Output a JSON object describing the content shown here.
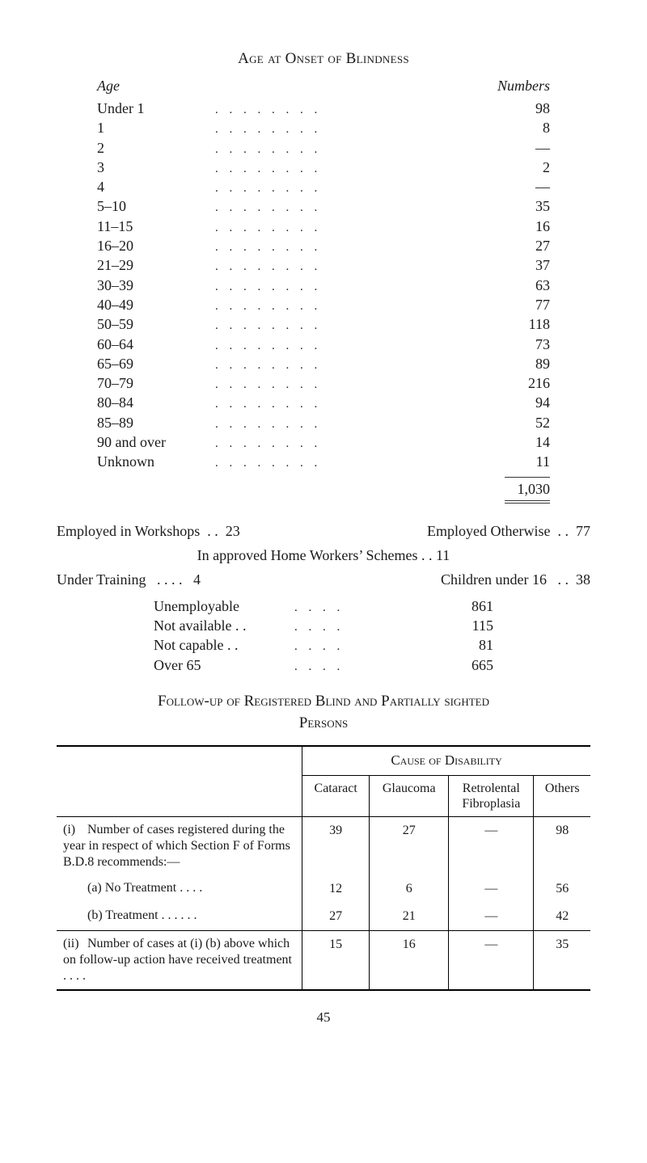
{
  "title": "Age at Onset of Blindness",
  "age_header": {
    "left": "Age",
    "right": "Numbers"
  },
  "age_rows": [
    {
      "label": "Under 1",
      "num": "98"
    },
    {
      "label": "1",
      "num": "8"
    },
    {
      "label": "2",
      "num": "—"
    },
    {
      "label": "3",
      "num": "2"
    },
    {
      "label": "4",
      "num": "—"
    },
    {
      "label": "5–10",
      "num": "35"
    },
    {
      "label": "11–15",
      "num": "16"
    },
    {
      "label": "16–20",
      "num": "27"
    },
    {
      "label": "21–29",
      "num": "37"
    },
    {
      "label": "30–39",
      "num": "63"
    },
    {
      "label": "40–49",
      "num": "77"
    },
    {
      "label": "50–59",
      "num": "118"
    },
    {
      "label": "60–64",
      "num": "73"
    },
    {
      "label": "65–69",
      "num": "89"
    },
    {
      "label": "70–79",
      "num": "216"
    },
    {
      "label": "80–84",
      "num": "94"
    },
    {
      "label": "85–89",
      "num": "52"
    },
    {
      "label": "90 and over",
      "num": "14"
    },
    {
      "label": "Unknown",
      "num": "11"
    }
  ],
  "age_total": "1,030",
  "employ_line": {
    "left_label": "Employed in Workshops",
    "left_dots": ". .",
    "left_val": "23",
    "right_label": "Employed Otherwise",
    "right_dots": ". .",
    "right_val": "77"
  },
  "approved_line": "In approved Home Workers’ Schemes  . .  11",
  "training_line": {
    "left_label": "Under Training",
    "left_dots": ". .     . .",
    "left_val": "4",
    "right_label": "Children under 16",
    "right_dots": ". .",
    "right_val": "38"
  },
  "mid_rows": [
    {
      "label": "Unemployable",
      "num": "861"
    },
    {
      "label": "Not available . .",
      "num": "115"
    },
    {
      "label": "Not capable   . .",
      "num": "81"
    },
    {
      "label": "Over 65",
      "num": "665"
    }
  ],
  "section2_line1": "Follow-up of Registered Blind and Partially sighted",
  "section2_line2": "Persons",
  "table": {
    "cause_head": "Cause of Disability",
    "cols": [
      "Cataract",
      "Glaucoma",
      "Retrolental\nFibroplasia",
      "Others"
    ],
    "row_i": {
      "roman": "(i)",
      "desc": "Number of cases registered during the year in respect of which Section F of Forms B.D.8 recommends:—",
      "vals": [
        "39",
        "27",
        "—",
        "98"
      ],
      "a_label": "(a)  No Treatment      . .    . .",
      "a_vals": [
        "12",
        "6",
        "—",
        "56"
      ],
      "b_label": "(b)  Treatment    . .     . .     . .",
      "b_vals": [
        "27",
        "21",
        "—",
        "42"
      ]
    },
    "row_ii": {
      "roman": "(ii)",
      "desc": "Number of cases at (i) (b) above which on follow-up action have received treatment         . .     . .",
      "vals": [
        "15",
        "16",
        "—",
        "35"
      ]
    }
  },
  "page_number": "45"
}
